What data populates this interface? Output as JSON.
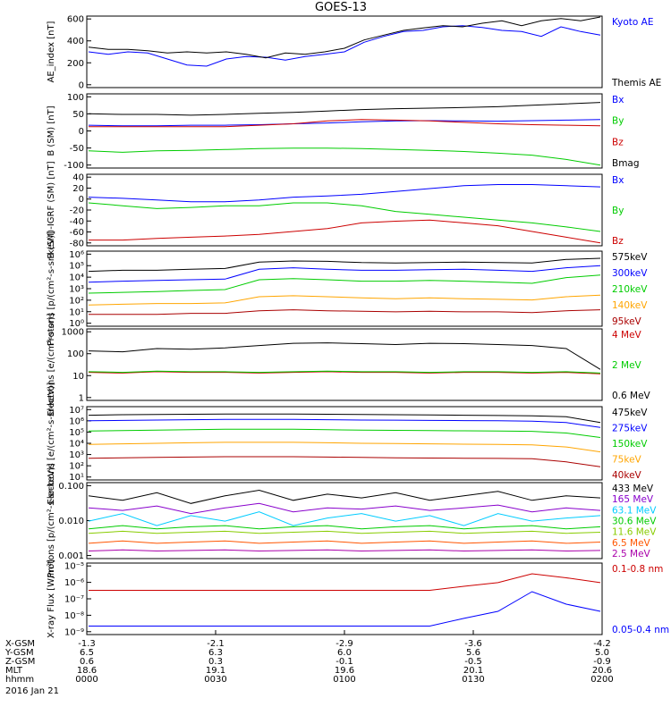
{
  "title": "GOES-13",
  "colors": {
    "black": "#000000",
    "blue": "#0000ff",
    "green": "#00cc00",
    "red": "#cc0000",
    "orange": "#ffa500",
    "darkred": "#aa0000",
    "purple": "#8800cc",
    "cyan": "#00ccff",
    "yellowgreen": "#88cc00",
    "orangered": "#ff5500",
    "magenta": "#aa00aa"
  },
  "chart_data": [
    {
      "type": "line",
      "ylabel": "AE_index [nT]",
      "ylim": [
        0,
        600
      ],
      "yticks": [
        "0",
        "200",
        "400",
        "600"
      ],
      "series": [
        {
          "name": "Kyoto AE",
          "color": "blue",
          "values": [
            300,
            280,
            300,
            290,
            240,
            190,
            180,
            240,
            260,
            255,
            230,
            260,
            280,
            300,
            380,
            430,
            470,
            480,
            510,
            520,
            505,
            480,
            470,
            430,
            510,
            470,
            440
          ]
        },
        {
          "name": "Themis AE",
          "color": "black",
          "values": [
            340,
            320,
            320,
            310,
            290,
            300,
            290,
            300,
            280,
            250,
            290,
            280,
            300,
            330,
            400,
            440,
            480,
            500,
            520,
            510,
            540,
            560,
            520,
            560,
            580,
            560,
            600
          ]
        }
      ]
    },
    {
      "type": "line",
      "ylabel": "B (SM) [nT]",
      "ylim": [
        -120,
        140
      ],
      "yticks": [
        "-100",
        "-50",
        "0",
        "50",
        "100"
      ],
      "series": [
        {
          "name": "Bx",
          "color": "blue",
          "values": [
            30,
            28,
            28,
            30,
            30,
            32,
            35,
            38,
            42,
            45,
            46,
            45,
            44,
            46,
            48,
            50
          ]
        },
        {
          "name": "By",
          "color": "green",
          "values": [
            -60,
            -65,
            -60,
            -58,
            -55,
            -52,
            -50,
            -50,
            -52,
            -55,
            -58,
            -62,
            -68,
            -75,
            -90,
            -110
          ]
        },
        {
          "name": "Bz",
          "color": "red",
          "values": [
            25,
            25,
            25,
            25,
            25,
            30,
            35,
            45,
            50,
            48,
            45,
            40,
            35,
            32,
            30,
            28
          ]
        },
        {
          "name": "Bmag",
          "color": "black",
          "values": [
            70,
            68,
            68,
            65,
            68,
            72,
            75,
            80,
            85,
            88,
            90,
            92,
            95,
            100,
            105,
            110
          ]
        }
      ]
    },
    {
      "type": "line",
      "ylabel": "B (SM)-IGRF (SM) [nT]",
      "ylim": [
        -85,
        40
      ],
      "yticks": [
        "-80",
        "-60",
        "-40",
        "-20",
        "0",
        "20",
        "40"
      ],
      "series": [
        {
          "name": "Bx",
          "color": "blue",
          "values": [
            0,
            -2,
            -5,
            -8,
            -8,
            -5,
            0,
            2,
            5,
            10,
            15,
            20,
            22,
            22,
            20,
            18
          ]
        },
        {
          "name": "By",
          "color": "green",
          "values": [
            -10,
            -15,
            -20,
            -18,
            -15,
            -15,
            -10,
            -10,
            -15,
            -25,
            -30,
            -35,
            -40,
            -45,
            -52,
            -60
          ]
        },
        {
          "name": "Bz",
          "color": "red",
          "values": [
            -75,
            -75,
            -72,
            -70,
            -68,
            -65,
            -60,
            -55,
            -45,
            -42,
            -40,
            -45,
            -50,
            -60,
            -70,
            -80
          ]
        }
      ]
    },
    {
      "type": "line",
      "ylabel": "Protons [p/(cm²-s-sr-keV)]",
      "yscale": "log",
      "ylim": [
        0.5,
        1000000
      ],
      "yticks": [
        "10⁰",
        "10¹",
        "10²",
        "10³",
        "10⁴",
        "10⁵",
        "10⁶"
      ],
      "series": [
        {
          "name": "575keV",
          "color": "black",
          "values": [
            20000,
            25000,
            25000,
            30000,
            35000,
            120000,
            150000,
            140000,
            110000,
            100000,
            110000,
            120000,
            110000,
            100000,
            200000,
            250000
          ]
        },
        {
          "name": "300keV",
          "color": "blue",
          "values": [
            2500,
            3000,
            3500,
            4000,
            4500,
            30000,
            40000,
            30000,
            25000,
            25000,
            28000,
            30000,
            25000,
            20000,
            40000,
            60000
          ]
        },
        {
          "name": "210keV",
          "color": "green",
          "values": [
            300,
            350,
            400,
            500,
            600,
            4000,
            5000,
            4000,
            3000,
            3000,
            3500,
            3000,
            2500,
            2000,
            6000,
            10000
          ]
        },
        {
          "name": "140keV",
          "color": "orange",
          "values": [
            30,
            35,
            40,
            40,
            45,
            150,
            180,
            150,
            120,
            100,
            120,
            100,
            90,
            80,
            150,
            200
          ]
        },
        {
          "name": "95keV",
          "color": "darkred",
          "values": [
            5,
            5,
            5,
            6,
            6,
            10,
            12,
            10,
            9,
            8,
            9,
            8,
            8,
            7,
            10,
            12
          ]
        }
      ]
    },
    {
      "type": "line",
      "ylabel": "Electrons [e/(cm²-s-sr)]",
      "yscale": "log",
      "ylim": [
        1,
        1000
      ],
      "yticks": [
        "1",
        "10",
        "100",
        "1000"
      ],
      "series": [
        {
          "name": "4 MeV",
          "color": "red",
          "values": [
            15,
            14,
            16,
            15,
            15,
            14,
            15,
            16,
            15,
            15,
            14,
            15,
            15,
            14,
            15,
            13
          ]
        },
        {
          "name": "2 MeV",
          "color": "green",
          "values": [
            16,
            15,
            17,
            16,
            16,
            15,
            16,
            17,
            16,
            16,
            15,
            16,
            16,
            15,
            16,
            14
          ]
        },
        {
          "name": "0.6 MeV",
          "color": "black",
          "values": [
            120,
            110,
            150,
            140,
            160,
            200,
            250,
            260,
            240,
            220,
            250,
            240,
            220,
            200,
            150,
            20
          ]
        }
      ]
    },
    {
      "type": "line",
      "ylabel": "Electrons [e/(cm²-s-sr-keV)]",
      "yscale": "log",
      "ylim": [
        10,
        10000000
      ],
      "yticks": [
        "10¹",
        "10²",
        "10³",
        "10⁴",
        "10⁵",
        "10⁶",
        "10⁷"
      ],
      "series": [
        {
          "name": "475keV",
          "color": "black",
          "values": [
            2000000,
            2200000,
            2300000,
            2400000,
            2500000,
            2500000,
            2500000,
            2400000,
            2300000,
            2200000,
            2100000,
            2000000,
            1900000,
            1800000,
            1500000,
            500000
          ]
        },
        {
          "name": "275keV",
          "color": "blue",
          "values": [
            700000,
            750000,
            800000,
            850000,
            900000,
            900000,
            900000,
            850000,
            800000,
            780000,
            750000,
            720000,
            700000,
            650000,
            500000,
            200000
          ]
        },
        {
          "name": "150keV",
          "color": "green",
          "values": [
            100000,
            110000,
            120000,
            130000,
            140000,
            140000,
            140000,
            130000,
            120000,
            115000,
            110000,
            105000,
            100000,
            95000,
            70000,
            30000
          ]
        },
        {
          "name": "75keV",
          "color": "orange",
          "values": [
            8000,
            9000,
            10000,
            11000,
            12000,
            12000,
            12000,
            11000,
            10000,
            9500,
            9000,
            8500,
            8000,
            7500,
            5000,
            2000
          ]
        },
        {
          "name": "40keV",
          "color": "darkred",
          "values": [
            600,
            650,
            700,
            750,
            800,
            800,
            800,
            750,
            700,
            650,
            620,
            600,
            580,
            550,
            300,
            120
          ]
        }
      ]
    },
    {
      "type": "line",
      "ylabel": "Protons [p/(cm²-s-sr-keV)]",
      "yscale": "log",
      "ylim": [
        0.001,
        1
      ],
      "yticks": [
        "0.001",
        "0.010",
        "0.100"
      ],
      "series": [
        {
          "name": "433 MeV",
          "color": "black",
          "values": [
            0.3,
            0.2,
            0.4,
            0.15,
            0.3,
            0.5,
            0.2,
            0.35,
            0.25,
            0.4,
            0.2,
            0.3,
            0.45,
            0.2,
            0.3,
            0.25
          ]
        },
        {
          "name": "165 MeV",
          "color": "purple",
          "values": [
            0.1,
            0.08,
            0.12,
            0.06,
            0.1,
            0.15,
            0.07,
            0.1,
            0.09,
            0.12,
            0.08,
            0.1,
            0.13,
            0.07,
            0.1,
            0.08
          ]
        },
        {
          "name": "63.1 MeV",
          "color": "cyan",
          "values": [
            0.03,
            0.06,
            0.02,
            0.05,
            0.03,
            0.07,
            0.02,
            0.04,
            0.06,
            0.03,
            0.05,
            0.02,
            0.06,
            0.03,
            0.04,
            0.05
          ]
        },
        {
          "name": "30.6 MeV",
          "color": "green",
          "values": [
            0.015,
            0.02,
            0.015,
            0.018,
            0.02,
            0.015,
            0.018,
            0.02,
            0.015,
            0.018,
            0.02,
            0.015,
            0.018,
            0.02,
            0.015,
            0.018
          ]
        },
        {
          "name": "11.6 MeV",
          "color": "yellowgreen",
          "values": [
            0.01,
            0.012,
            0.01,
            0.011,
            0.012,
            0.01,
            0.011,
            0.012,
            0.01,
            0.011,
            0.012,
            0.01,
            0.011,
            0.012,
            0.01,
            0.011
          ]
        },
        {
          "name": "6.5 MeV",
          "color": "orangered",
          "values": [
            0.004,
            0.005,
            0.004,
            0.0045,
            0.005,
            0.004,
            0.0045,
            0.005,
            0.004,
            0.0045,
            0.005,
            0.004,
            0.0045,
            0.005,
            0.004,
            0.0045
          ]
        },
        {
          "name": "2.5 MeV",
          "color": "magenta",
          "values": [
            0.002,
            0.0022,
            0.002,
            0.0021,
            0.0022,
            0.002,
            0.0021,
            0.0022,
            0.002,
            0.0021,
            0.0022,
            0.002,
            0.0021,
            0.0022,
            0.002,
            0.0021
          ]
        }
      ]
    },
    {
      "type": "line",
      "ylabel": "X-ray Flux [W/m²]",
      "yscale": "log",
      "ylim": [
        1e-09,
        1e-05
      ],
      "yticks": [
        "10⁻⁹",
        "10⁻⁸",
        "10⁻⁷",
        "10⁻⁶",
        "10⁻⁵"
      ],
      "series": [
        {
          "name": "0.1-0.8 nm",
          "color": "red",
          "values": [
            3e-07,
            3e-07,
            3e-07,
            3e-07,
            3e-07,
            3e-07,
            3e-07,
            3e-07,
            3e-07,
            3e-07,
            3e-07,
            5e-07,
            8e-07,
            2.5e-06,
            1.5e-06,
            8e-07
          ]
        },
        {
          "name": "0.05-0.4 nm",
          "color": "blue",
          "values": [
            3e-09,
            3e-09,
            3e-09,
            3e-09,
            3e-09,
            3e-09,
            3e-09,
            3e-09,
            3e-09,
            3e-09,
            3e-09,
            8e-09,
            2e-08,
            2.5e-07,
            5e-08,
            2e-08
          ]
        }
      ]
    }
  ],
  "xaxis": {
    "row_labels": [
      "X-GSM",
      "Y-GSM",
      "Z-GSM",
      "MLT",
      "hhmm"
    ],
    "date": "2016 Jan 21",
    "columns": [
      [
        "-1.3",
        "6.5",
        "0.6",
        "18.6",
        "0000"
      ],
      [
        "-2.1",
        "6.3",
        "0.3",
        "19.1",
        "0030"
      ],
      [
        "-2.9",
        "6.0",
        "-0.1",
        "19.6",
        "0100"
      ],
      [
        "-3.6",
        "5.6",
        "-0.5",
        "20.1",
        "0130"
      ],
      [
        "-4.2",
        "5.0",
        "-0.9",
        "20.6",
        "0200"
      ]
    ]
  }
}
